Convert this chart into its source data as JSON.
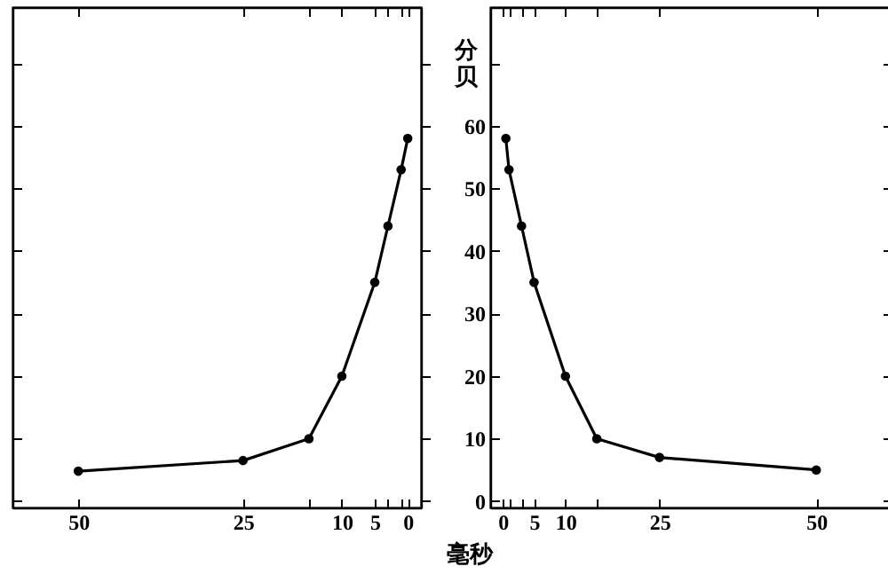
{
  "chart_data": [
    {
      "type": "line",
      "x": [
        0,
        1,
        3,
        5,
        10,
        15,
        25,
        50
      ],
      "values": [
        58,
        53,
        44,
        35,
        20,
        10,
        6.5,
        4.8
      ],
      "color": "#000000",
      "marker": "circle",
      "xlim": [
        60,
        -2
      ],
      "xticks": [
        0,
        {
          "value": 1,
          "label": null
        },
        {
          "value": 3,
          "label": null
        },
        5,
        10,
        {
          "value": 15,
          "label": null
        },
        25,
        50
      ],
      "ylim": [
        -1,
        79
      ],
      "yticks": [
        0,
        10,
        20,
        30,
        40,
        50,
        60,
        {
          "value": 70,
          "label": null
        }
      ],
      "tick_labels": "x"
    },
    {
      "type": "line",
      "x": [
        0.5,
        1,
        3,
        5,
        10,
        15,
        25,
        50
      ],
      "values": [
        58,
        53,
        44,
        35,
        20,
        10,
        7,
        5
      ],
      "color": "#000000",
      "marker": "circle",
      "xlabel": "毫秒",
      "ylabel": "分贝",
      "xlim": [
        -2,
        62
      ],
      "xticks": [
        0,
        {
          "value": 1,
          "label": null
        },
        {
          "value": 3,
          "label": null
        },
        5,
        10,
        {
          "value": 15,
          "label": null
        },
        25,
        50
      ],
      "ylim": [
        -1,
        79
      ],
      "yticks": [
        0,
        10,
        20,
        30,
        40,
        50,
        60,
        {
          "value": 70,
          "label": null
        }
      ]
    }
  ]
}
